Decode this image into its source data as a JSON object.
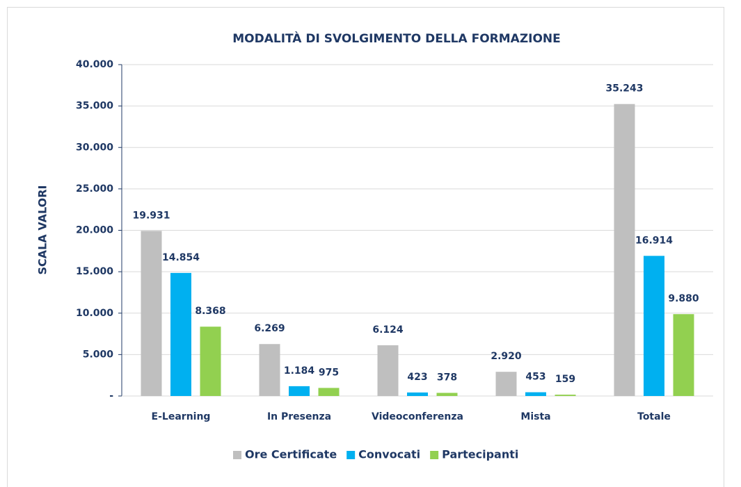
{
  "chart_data": {
    "type": "bar",
    "title": "MODALITÀ DI SVOLGIMENTO DELLA FORMAZIONE",
    "y_label": "SCALA VALORI",
    "categories": [
      "E-Learning",
      "In Presenza",
      "Videoconferenza",
      "Mista",
      "Totale"
    ],
    "series": [
      {
        "name": "Ore Certificate",
        "color": "#bfbfbf",
        "values": [
          19931,
          6269,
          6124,
          2920,
          35243
        ],
        "value_labels": [
          "19.931",
          "6.269",
          "6.124",
          "2.920",
          "35.243"
        ]
      },
      {
        "name": "Convocati",
        "color": "#00b0f0",
        "values": [
          14854,
          1184,
          423,
          453,
          16914
        ],
        "value_labels": [
          "14.854",
          "1.184",
          "423",
          "453",
          "16.914"
        ]
      },
      {
        "name": "Partecipanti",
        "color": "#92d050",
        "values": [
          8368,
          975,
          378,
          159,
          9880
        ],
        "value_labels": [
          "8.368",
          "975",
          "378",
          "159",
          "9.880"
        ]
      }
    ],
    "ylim": [
      0,
      40000
    ],
    "yticks": [
      {
        "value": 0,
        "label": "-"
      },
      {
        "value": 5000,
        "label": "5.000"
      },
      {
        "value": 10000,
        "label": "10.000"
      },
      {
        "value": 15000,
        "label": "15.000"
      },
      {
        "value": 20000,
        "label": "20.000"
      },
      {
        "value": 25000,
        "label": "25.000"
      },
      {
        "value": 30000,
        "label": "30.000"
      },
      {
        "value": 35000,
        "label": "35.000"
      },
      {
        "value": 40000,
        "label": "40.000"
      }
    ],
    "grid": true,
    "legend": "bottom"
  }
}
